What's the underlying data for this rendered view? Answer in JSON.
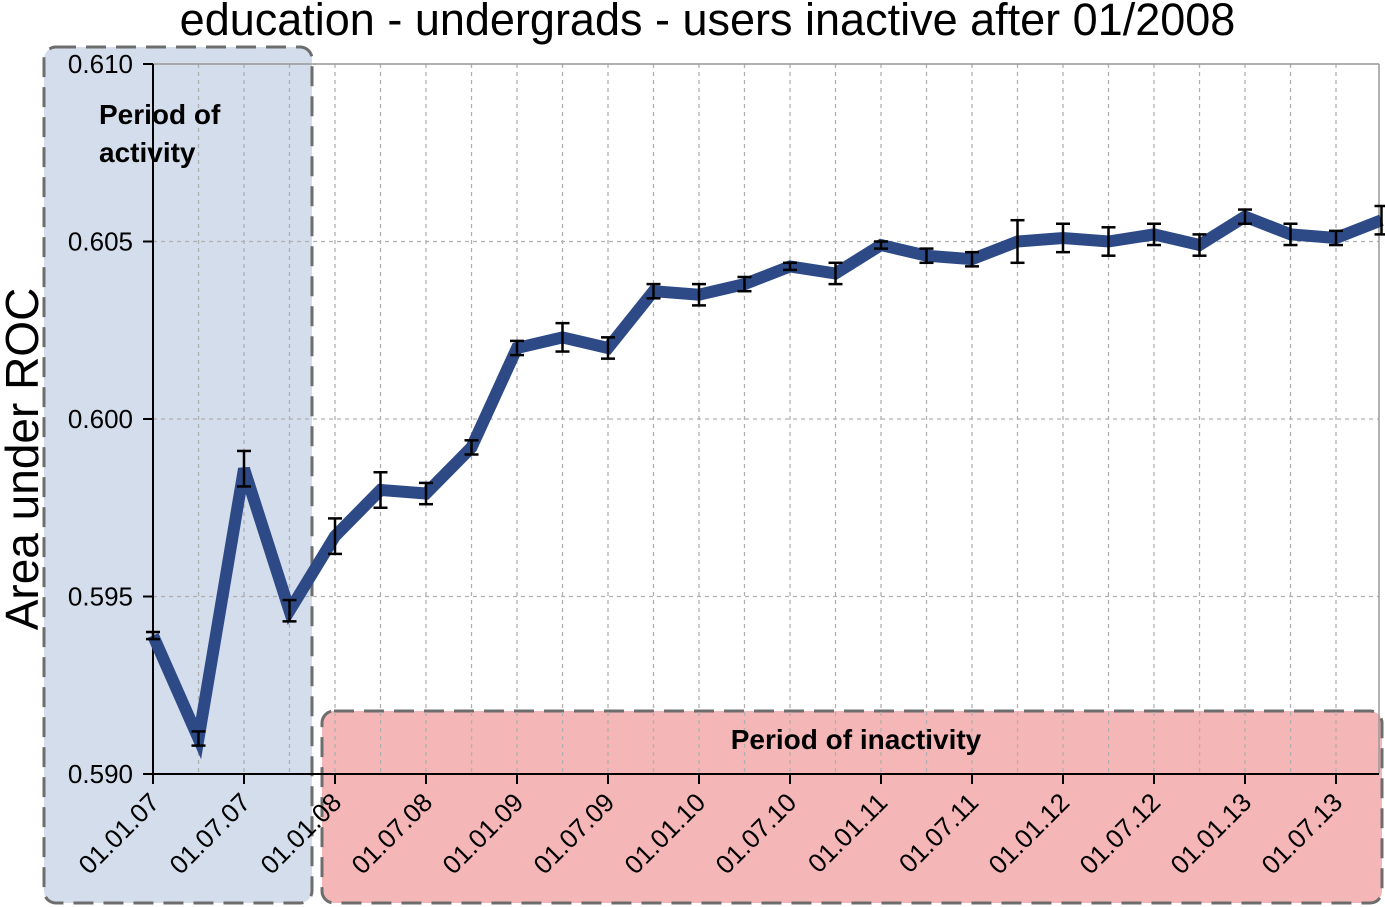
{
  "chart_data": {
    "type": "line",
    "title": "education - undergrads - users inactive after 01/2008",
    "xlabel": "",
    "ylabel": "Area under ROC",
    "ylim": [
      0.59,
      0.61
    ],
    "yticks": [
      "0.590",
      "0.595",
      "0.600",
      "0.605",
      "0.610"
    ],
    "x_tick_labels": [
      "01.01.07",
      "01.07.07",
      "01.01.08",
      "01.07.08",
      "01.01.09",
      "01.07.09",
      "01.01.10",
      "01.07.10",
      "01.01.11",
      "01.07.11",
      "01.01.12",
      "01.07.12",
      "01.01.13",
      "01.07.13"
    ],
    "grid": true,
    "line_color": "#2d4a87",
    "series": [
      {
        "x": [
          "2007-01",
          "2007-04",
          "2007-07",
          "2007-10",
          "2008-01",
          "2008-04",
          "2008-07",
          "2008-10",
          "2009-01",
          "2009-04",
          "2009-07",
          "2009-10",
          "2010-01",
          "2010-04",
          "2010-07",
          "2010-10",
          "2011-01",
          "2011-04",
          "2011-07",
          "2011-10",
          "2012-01",
          "2012-04",
          "2012-07",
          "2012-10",
          "2013-01",
          "2013-04",
          "2013-07",
          "2013-10"
        ],
        "values": [
          0.5939,
          0.591,
          0.5986,
          0.5946,
          0.5967,
          0.598,
          0.5979,
          0.5992,
          0.602,
          0.6023,
          0.602,
          0.6036,
          0.6035,
          0.6038,
          0.6043,
          0.6041,
          0.6049,
          0.6046,
          0.6045,
          0.605,
          0.6051,
          0.605,
          0.6052,
          0.6049,
          0.6057,
          0.6052,
          0.6051,
          0.6056
        ],
        "errors": [
          0.0001,
          0.0002,
          0.0005,
          0.0003,
          0.0005,
          0.0005,
          0.0003,
          0.0002,
          0.0002,
          0.0004,
          0.0003,
          0.0002,
          0.0003,
          0.0002,
          0.0001,
          0.0003,
          0.0001,
          0.0002,
          0.0002,
          0.0006,
          0.0004,
          0.0004,
          0.0003,
          0.0003,
          0.0002,
          0.0003,
          0.0002,
          0.0004
        ]
      }
    ],
    "annotations": [
      {
        "text_lines": [
          "Period of",
          "activity"
        ],
        "from": "2007-01",
        "to": "2008-01",
        "color": "#d4ddec"
      },
      {
        "text_lines": [
          "Period of inactivity"
        ],
        "from": "2008-01",
        "to": "2013-10",
        "color": "#f4b6b6"
      }
    ]
  }
}
